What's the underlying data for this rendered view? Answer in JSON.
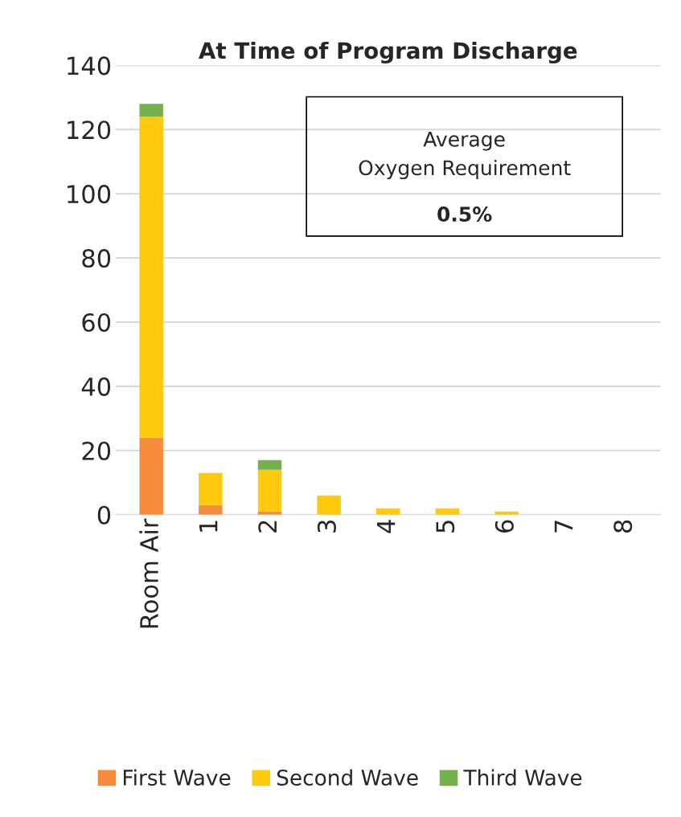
{
  "chart_data": {
    "type": "bar",
    "title": "At Time of Program Discharge",
    "categories": [
      "Room Air",
      "1",
      "2",
      "3",
      "4",
      "5",
      "6",
      "7",
      "8"
    ],
    "stacked": true,
    "series": [
      {
        "name": "First Wave",
        "color": "#f68b3c",
        "values": [
          24,
          3,
          1,
          0,
          0,
          0,
          0,
          0,
          0
        ]
      },
      {
        "name": "Second Wave",
        "color": "#ffc90d",
        "values": [
          100,
          10,
          13,
          6,
          2,
          2,
          1,
          0,
          0
        ]
      },
      {
        "name": "Third Wave",
        "color": "#74b04c",
        "values": [
          4,
          0,
          3,
          0,
          0,
          0,
          0,
          0,
          0
        ]
      }
    ],
    "ylim": [
      0,
      140
    ],
    "yticks": [
      0,
      20,
      40,
      60,
      80,
      100,
      120,
      140
    ],
    "grid": "y",
    "legend": "bottom",
    "annotations": [
      "Average\nOxygen Requirement",
      "0.5%"
    ]
  }
}
